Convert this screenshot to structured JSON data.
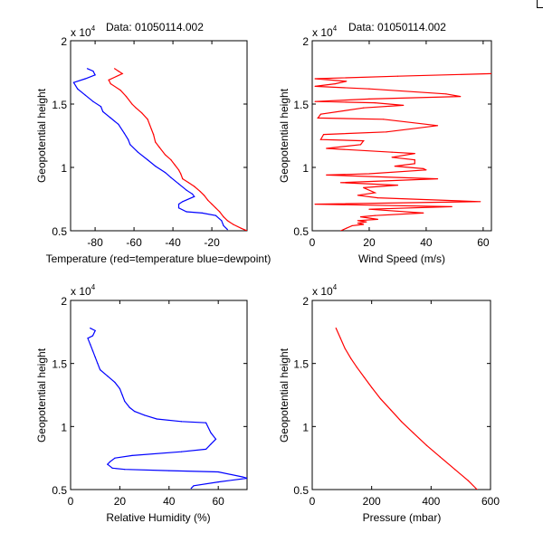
{
  "figure": {
    "background": "#ffffff",
    "axis_color": "#000000"
  },
  "chart_data": [
    {
      "id": "temperature",
      "type": "line",
      "title": "Data: 01050114.002",
      "xlabel": "Temperature (red=temperature blue=dewpoint)",
      "ylabel": "Geopotential height",
      "y_exponent_label": "x 10",
      "y_exponent": "4",
      "xlim": [
        -92.6,
        -1.9
      ],
      "ylim": [
        0.5,
        2
      ],
      "xticks": [
        -80,
        -60,
        -40,
        -20
      ],
      "xtick_labels": [
        "-80",
        "-60",
        "-40",
        "-20"
      ],
      "yticks": [
        0.5,
        1,
        1.5,
        2
      ],
      "ytick_labels": [
        "0.5",
        "1",
        "1.5",
        "2"
      ],
      "series": [
        {
          "name": "temperature",
          "color": "#ff0000",
          "x": [
            -70,
            -68,
            -66,
            -73,
            -72,
            -67,
            -64,
            -61,
            -59,
            -56,
            -53,
            -51,
            -50,
            -49,
            -47,
            -44,
            -41,
            -39,
            -37,
            -36,
            -35,
            -32,
            -29,
            -26,
            -24,
            -22,
            -20,
            -18,
            -16,
            -14,
            -12,
            -9,
            -5,
            -2
          ],
          "y": [
            1.78,
            1.76,
            1.74,
            1.69,
            1.66,
            1.61,
            1.56,
            1.5,
            1.47,
            1.43,
            1.38,
            1.3,
            1.26,
            1.2,
            1.16,
            1.1,
            1.06,
            1.02,
            0.98,
            0.95,
            0.91,
            0.88,
            0.85,
            0.81,
            0.78,
            0.74,
            0.71,
            0.68,
            0.65,
            0.61,
            0.58,
            0.55,
            0.52,
            0.5
          ]
        },
        {
          "name": "dewpoint",
          "color": "#0000ff",
          "x": [
            -84,
            -81,
            -80,
            -85,
            -91,
            -89,
            -85,
            -81,
            -77,
            -76,
            -72,
            -68,
            -65,
            -63,
            -62,
            -58,
            -53,
            -49,
            -44,
            -41,
            -37,
            -33,
            -30,
            -29,
            -35,
            -37,
            -37,
            -33,
            -25,
            -18,
            -15,
            -14,
            -12
          ],
          "y": [
            1.78,
            1.76,
            1.73,
            1.7,
            1.67,
            1.62,
            1.57,
            1.52,
            1.48,
            1.44,
            1.39,
            1.34,
            1.27,
            1.22,
            1.18,
            1.12,
            1.06,
            1.01,
            0.96,
            0.92,
            0.87,
            0.82,
            0.79,
            0.77,
            0.73,
            0.71,
            0.68,
            0.65,
            0.64,
            0.62,
            0.58,
            0.54,
            0.51
          ]
        }
      ]
    },
    {
      "id": "wind",
      "type": "line",
      "title": "Data: 01050114.002",
      "xlabel": "Wind Speed (m/s)",
      "ylabel": "Geopotential height",
      "y_exponent_label": "x 10",
      "y_exponent": "4",
      "xlim": [
        0,
        62.9
      ],
      "ylim": [
        0.5,
        2
      ],
      "xticks": [
        0,
        20,
        40,
        60
      ],
      "xtick_labels": [
        "0",
        "20",
        "40",
        "60"
      ],
      "yticks": [
        0.5,
        1,
        1.5,
        2
      ],
      "ytick_labels": [
        "0.5",
        "1",
        "1.5",
        "2"
      ],
      "series": [
        {
          "name": "wind speed",
          "color": "#ff0000",
          "x": [
            62.9,
            30,
            1,
            12,
            8,
            1,
            20,
            47,
            52,
            20,
            1,
            22,
            32,
            18,
            3,
            2,
            25,
            44,
            26,
            4,
            3,
            18,
            17,
            5,
            28,
            36,
            28,
            36,
            36,
            29,
            39,
            40,
            20,
            5,
            44,
            10,
            30,
            18,
            22,
            16,
            23,
            59,
            1,
            49,
            20,
            39,
            22,
            17,
            23,
            16,
            19,
            16,
            18,
            14,
            12,
            10
          ],
          "y": [
            1.74,
            1.72,
            1.7,
            1.68,
            1.66,
            1.64,
            1.62,
            1.58,
            1.56,
            1.54,
            1.52,
            1.51,
            1.49,
            1.47,
            1.42,
            1.39,
            1.38,
            1.33,
            1.28,
            1.26,
            1.22,
            1.21,
            1.18,
            1.15,
            1.12,
            1.11,
            1.08,
            1.06,
            1.03,
            1.01,
            0.99,
            0.98,
            0.95,
            0.94,
            0.91,
            0.88,
            0.86,
            0.84,
            0.8,
            0.78,
            0.76,
            0.73,
            0.71,
            0.69,
            0.67,
            0.64,
            0.62,
            0.61,
            0.59,
            0.58,
            0.57,
            0.56,
            0.55,
            0.54,
            0.52,
            0.5
          ]
        }
      ]
    },
    {
      "id": "humidity",
      "type": "line",
      "xlabel": "Relative Humidity (%)",
      "ylabel": "Geopotential height",
      "y_exponent_label": "x 10",
      "y_exponent": "4",
      "xlim": [
        0,
        71.7
      ],
      "ylim": [
        0.5,
        2
      ],
      "xticks": [
        0,
        20,
        40,
        60
      ],
      "xtick_labels": [
        "0",
        "20",
        "40",
        "60"
      ],
      "yticks": [
        0.5,
        1,
        1.5,
        2
      ],
      "ytick_labels": [
        "0.5",
        "1",
        "1.5",
        "2"
      ],
      "series": [
        {
          "name": "relative humidity",
          "color": "#0000ff",
          "x": [
            8,
            10,
            9,
            7,
            8,
            9,
            10,
            11,
            12,
            15,
            18,
            20,
            21,
            22,
            24,
            26,
            30,
            35,
            45,
            55,
            57,
            59,
            57,
            55,
            45,
            25,
            18,
            16,
            15,
            17,
            22,
            40,
            60,
            70,
            71.7,
            60,
            50,
            49
          ],
          "y": [
            1.78,
            1.76,
            1.72,
            1.7,
            1.65,
            1.6,
            1.55,
            1.5,
            1.45,
            1.4,
            1.35,
            1.3,
            1.25,
            1.2,
            1.15,
            1.12,
            1.09,
            1.06,
            1.04,
            1.03,
            0.95,
            0.9,
            0.86,
            0.82,
            0.8,
            0.77,
            0.75,
            0.72,
            0.7,
            0.67,
            0.66,
            0.65,
            0.64,
            0.6,
            0.59,
            0.56,
            0.53,
            0.51
          ]
        }
      ]
    },
    {
      "id": "pressure",
      "type": "line",
      "xlabel": "Pressure (mbar)",
      "ylabel": "Geopotential height",
      "y_exponent_label": "x 10",
      "y_exponent": "4",
      "xlim": [
        0,
        600
      ],
      "ylim": [
        0.5,
        2
      ],
      "xticks": [
        0,
        200,
        400,
        600
      ],
      "xtick_labels": [
        "0",
        "200",
        "400",
        "600"
      ],
      "yticks": [
        0.5,
        1,
        1.5,
        2
      ],
      "ytick_labels": [
        "0.5",
        "1",
        "1.5",
        "2"
      ],
      "series": [
        {
          "name": "pressure",
          "color": "#ff0000",
          "x": [
            80,
            95,
            110,
            130,
            150,
            175,
            200,
            230,
            265,
            300,
            340,
            385,
            430,
            480,
            525,
            555
          ],
          "y": [
            1.78,
            1.7,
            1.62,
            1.54,
            1.47,
            1.39,
            1.31,
            1.22,
            1.13,
            1.04,
            0.95,
            0.85,
            0.76,
            0.66,
            0.57,
            0.5
          ]
        }
      ]
    }
  ]
}
